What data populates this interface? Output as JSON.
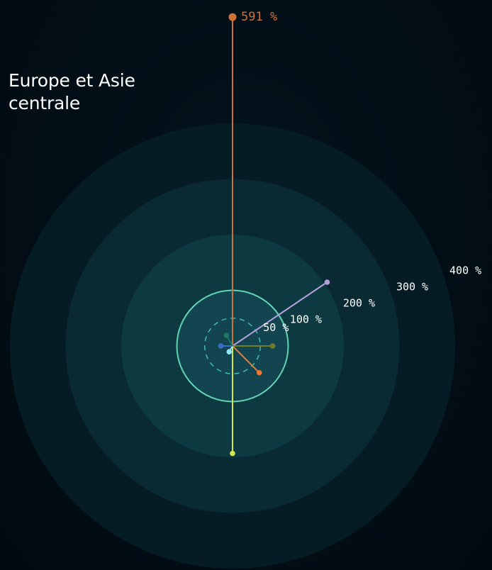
{
  "title": "Europe et Asie centrale",
  "colors": {
    "ring_fills": [
      "#061c24",
      "#0a2a33",
      "#0d3941",
      "#124550"
    ],
    "hundred_ring": "#64d2b4",
    "fifty_ring": "#46b9aa"
  },
  "chart_data": {
    "type": "radial",
    "title": "Europe et Asie centrale",
    "ring_labels": [
      "50 %",
      "100 %",
      "200 %",
      "300 %",
      "400 %"
    ],
    "rings": [
      50,
      100,
      200,
      300,
      400
    ],
    "max": 591,
    "max_label": "591 %",
    "points": [
      {
        "value": 591,
        "angle": 0,
        "color": "#cd7337"
      },
      {
        "value": 205,
        "angle": 56,
        "color": "#b4a0dc"
      },
      {
        "value": 72,
        "angle": 90,
        "color": "#737d28"
      },
      {
        "value": 68,
        "angle": 135,
        "color": "#eb7832"
      },
      {
        "value": 193,
        "angle": 180,
        "color": "#d2e650"
      },
      {
        "value": 12,
        "angle": 210,
        "color": "#91e6f0"
      },
      {
        "value": 21,
        "angle": 270,
        "color": "#3c6ec8"
      },
      {
        "value": 22,
        "angle": 330,
        "color": "#1e7864"
      }
    ]
  }
}
